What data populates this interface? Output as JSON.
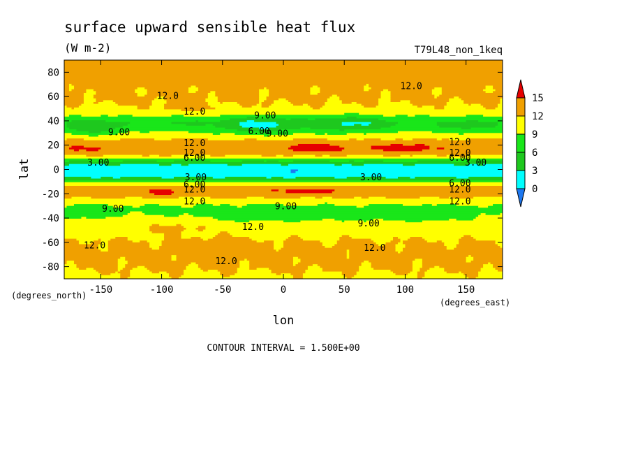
{
  "chart_data": {
    "type": "heatmap",
    "title": "surface upward sensible heat flux",
    "units": "(W m-2)",
    "run_label": "T79L48_non_1keq",
    "xlabel": "lon",
    "ylabel": "lat",
    "x_units": "(degrees_east)",
    "y_units": "(degrees_north)",
    "xlim": [
      -180,
      180
    ],
    "ylim": [
      -90,
      90
    ],
    "x_ticks": [
      -150,
      -100,
      -50,
      0,
      50,
      100,
      150
    ],
    "y_ticks": [
      80,
      60,
      40,
      20,
      0,
      -20,
      -40,
      -60,
      -80
    ],
    "footer": "CONTOUR INTERVAL = 1.500E+00",
    "colorbar": {
      "levels": [
        0,
        3,
        6,
        9,
        12,
        15
      ],
      "colors": {
        "lt0": "#1e78f0",
        "b0_3": "#00ffff",
        "b3_6": "#1ec81e",
        "b6_9": "#19e619",
        "b9_12": "#ffff00",
        "b12_15": "#f0a000",
        "gt15": "#e60000"
      }
    },
    "zonal_profile": {
      "lat": [
        -90,
        -80,
        -70,
        -60,
        -50,
        -40,
        -33,
        -28,
        -24,
        -20,
        -17,
        -14,
        -11,
        -8,
        -5,
        -2,
        0,
        2,
        5,
        8,
        10,
        12,
        15,
        18,
        22,
        26,
        30,
        34,
        38,
        42,
        46,
        50,
        55,
        60,
        65,
        70,
        80,
        90
      ],
      "value": [
        11.5,
        12.3,
        12.6,
        12.2,
        11.0,
        9.8,
        8.4,
        9.5,
        11.7,
        13.6,
        13.9,
        12.5,
        9.5,
        4.5,
        1.5,
        0.7,
        0.6,
        1.4,
        3.8,
        7.5,
        10.5,
        12.6,
        14.0,
        14.2,
        13.4,
        11.5,
        9.8,
        8.0,
        6.8,
        8.0,
        10.2,
        11.6,
        12.1,
        12.4,
        12.3,
        12.6,
        12.8,
        12.6
      ]
    },
    "anomalies": [
      {
        "lon": -155,
        "lat": 34,
        "amp": -4.5,
        "wlon": 22,
        "wlat": 6
      },
      {
        "lon": -85,
        "lat": 37,
        "amp": -1.2,
        "wlon": 18,
        "wlat": 6
      },
      {
        "lon": -20,
        "lat": 36,
        "amp": -5.5,
        "wlon": 32,
        "wlat": 7
      },
      {
        "lon": 55,
        "lat": 37,
        "amp": -4.5,
        "wlon": 32,
        "wlat": 7
      },
      {
        "lon": 150,
        "lat": 35,
        "amp": -2.5,
        "wlon": 25,
        "wlat": 6
      },
      {
        "lon": 25,
        "lat": 18,
        "amp": 2.2,
        "wlon": 26,
        "wlat": 4
      },
      {
        "lon": 100,
        "lat": 18,
        "amp": 2.2,
        "wlon": 22,
        "wlat": 4
      },
      {
        "lon": -165,
        "lat": 17,
        "amp": 1.0,
        "wlon": 20,
        "wlat": 4
      },
      {
        "lon": -80,
        "lat": 50,
        "amp": 1.5,
        "wlon": 18,
        "wlat": 5
      },
      {
        "lon": -100,
        "lat": -19,
        "amp": 2.0,
        "wlon": 12,
        "wlat": 3
      },
      {
        "lon": 20,
        "lat": -18,
        "amp": 2.0,
        "wlon": 28,
        "wlat": 3
      },
      {
        "lon": -10,
        "lat": -38,
        "amp": -2.2,
        "wlon": 65,
        "wlat": 6
      },
      {
        "lon": 110,
        "lat": -38,
        "amp": -2.0,
        "wlon": 50,
        "wlat": 6
      },
      {
        "lon": -165,
        "lat": -36,
        "amp": -2.2,
        "wlon": 22,
        "wlat": 5
      },
      {
        "lon": -85,
        "lat": -47,
        "amp": 1.8,
        "wlon": 30,
        "wlat": 6
      },
      {
        "lon": -50,
        "lat": -62,
        "amp": 1.2,
        "wlon": 25,
        "wlat": 6
      },
      {
        "lon": 10,
        "lat": 0,
        "amp": -1.0,
        "wlon": 8,
        "wlat": 5
      },
      {
        "lon": 60,
        "lat": 85,
        "amp": 1.0,
        "wlon": 30,
        "wlat": 4
      }
    ],
    "contour_labels": [
      {
        "text": "12.0",
        "lon": -95,
        "lat": 61
      },
      {
        "text": "12.0",
        "lon": 105,
        "lat": 69
      },
      {
        "text": "12.0",
        "lon": -73,
        "lat": 48
      },
      {
        "text": "9.00",
        "lon": -15,
        "lat": 45
      },
      {
        "text": "6.00",
        "lon": -20,
        "lat": 32
      },
      {
        "text": "9.00",
        "lon": -5,
        "lat": 30
      },
      {
        "text": "9.00",
        "lon": -135,
        "lat": 31
      },
      {
        "text": "12.0",
        "lon": -73,
        "lat": 22
      },
      {
        "text": "12.0",
        "lon": -73,
        "lat": 14
      },
      {
        "text": "6.00",
        "lon": -73,
        "lat": 10
      },
      {
        "text": "12.0",
        "lon": 145,
        "lat": 23
      },
      {
        "text": "12.0",
        "lon": 145,
        "lat": 14
      },
      {
        "text": "6.00",
        "lon": 145,
        "lat": 10
      },
      {
        "text": "3.00",
        "lon": 158,
        "lat": 6
      },
      {
        "text": "3.00",
        "lon": -152,
        "lat": 6
      },
      {
        "text": "3.00",
        "lon": -72,
        "lat": -6
      },
      {
        "text": "3.00",
        "lon": 72,
        "lat": -6
      },
      {
        "text": "6.00",
        "lon": -73,
        "lat": -12
      },
      {
        "text": "12.0",
        "lon": -73,
        "lat": -16
      },
      {
        "text": "6.00",
        "lon": 145,
        "lat": -11
      },
      {
        "text": "12.0",
        "lon": 145,
        "lat": -16
      },
      {
        "text": "12.0",
        "lon": -73,
        "lat": -26
      },
      {
        "text": "12.0",
        "lon": 145,
        "lat": -26
      },
      {
        "text": "9.00",
        "lon": -140,
        "lat": -32
      },
      {
        "text": "9.00",
        "lon": 2,
        "lat": -30
      },
      {
        "text": "9.00",
        "lon": 70,
        "lat": -44
      },
      {
        "text": "12.0",
        "lon": -25,
        "lat": -47
      },
      {
        "text": "12.0",
        "lon": -155,
        "lat": -62
      },
      {
        "text": "12.0",
        "lon": 75,
        "lat": -64
      },
      {
        "text": "12.0",
        "lon": -47,
        "lat": -75
      }
    ]
  }
}
